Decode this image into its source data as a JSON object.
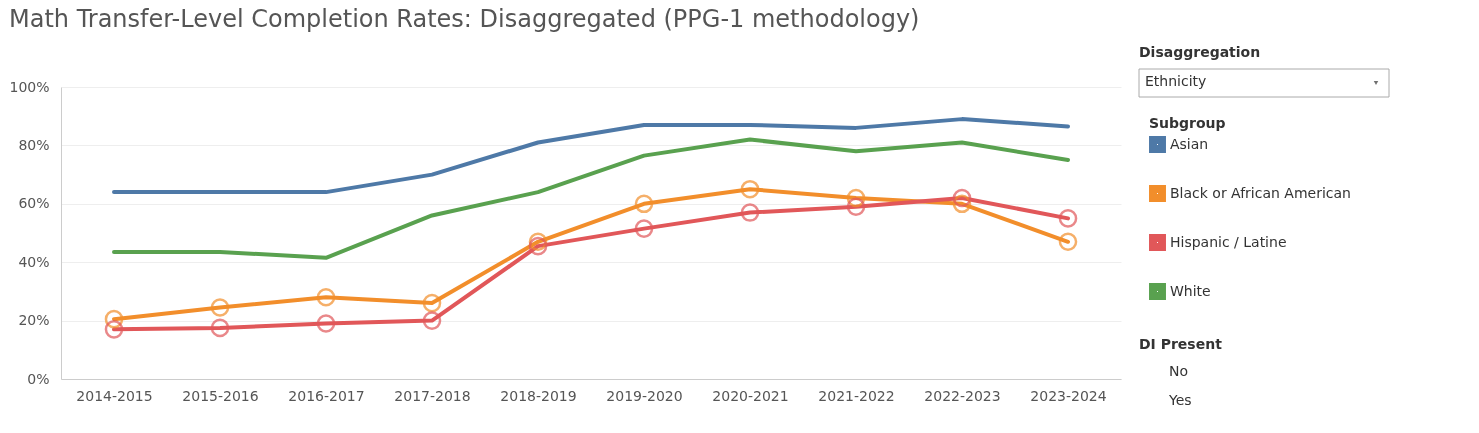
{
  "chart_data": {
    "type": "line",
    "title": "Math Transfer-Level Completion Rates: Disaggregated (PPG-1 methodology)",
    "categories": [
      "2014-2015",
      "2015-2016",
      "2016-2017",
      "2017-2018",
      "2018-2019",
      "2019-2020",
      "2020-2021",
      "2021-2022",
      "2022-2023",
      "2023-2024"
    ],
    "series": [
      {
        "name": "Asian",
        "color": "#4e79a7",
        "marker": "none",
        "values": [
          64,
          64,
          64,
          70,
          81,
          87,
          87,
          86,
          89,
          86.5
        ]
      },
      {
        "name": "Black or African American",
        "color": "#f28e2b",
        "marker": "circle",
        "values": [
          20.5,
          24.5,
          28,
          26,
          47,
          60,
          65,
          62,
          60,
          47
        ]
      },
      {
        "name": "Hispanic / Latine",
        "color": "#e15759",
        "marker": "circle",
        "values": [
          17,
          17.5,
          19,
          20,
          45.5,
          51.5,
          57,
          59,
          62,
          55
        ]
      },
      {
        "name": "White",
        "color": "#59a14f",
        "marker": "none",
        "values": [
          43.5,
          43.5,
          41.5,
          56,
          64,
          76.5,
          82,
          78,
          81,
          75
        ]
      }
    ],
    "ylim": [
      0,
      100
    ],
    "yticks": [
      {
        "value": 0,
        "label": "0%"
      },
      {
        "value": 20,
        "label": "20%"
      },
      {
        "value": 40,
        "label": "40%"
      },
      {
        "value": 60,
        "label": "60%"
      },
      {
        "value": 80,
        "label": "80%"
      },
      {
        "value": 100,
        "label": "100%"
      }
    ],
    "grid": "y",
    "legend": "right",
    "legend_title": "Subgroup",
    "line_style": "solid",
    "annotations": [
      "Disaggregation",
      "Ethnicity",
      "DI Present",
      "No",
      "Yes"
    ]
  }
}
